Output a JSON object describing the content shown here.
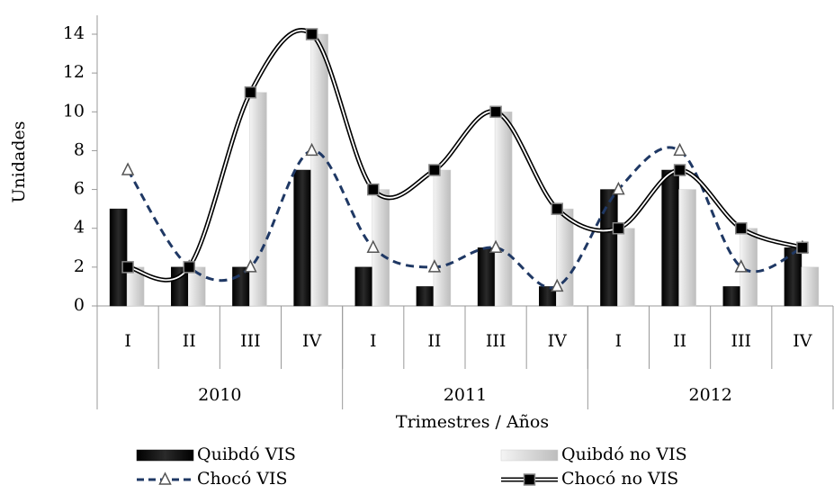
{
  "chart_data": {
    "type": "combo",
    "y_label": "Unidades",
    "x_label": "Trimestres / Años",
    "categories": [
      "I",
      "II",
      "III",
      "IV",
      "I",
      "II",
      "III",
      "IV",
      "I",
      "II",
      "III",
      "IV"
    ],
    "groups": [
      "2010",
      "2011",
      "2012"
    ],
    "ylim": [
      0,
      14
    ],
    "yticks": [
      0,
      2,
      4,
      6,
      8,
      10,
      12,
      14
    ],
    "series": [
      {
        "name": "Quibdó VIS",
        "type": "bar",
        "color": "#111111",
        "values": [
          5,
          2,
          2,
          7,
          2,
          1,
          3,
          1,
          6,
          7,
          1,
          3
        ]
      },
      {
        "name": "Quibdó no VIS",
        "type": "bar",
        "color": "#cfcfcf",
        "values": [
          2,
          2,
          11,
          14,
          6,
          7,
          10,
          5,
          4,
          6,
          4,
          2
        ]
      },
      {
        "name": "Chocó VIS",
        "type": "line",
        "style": "dashed",
        "marker": "triangle",
        "color": "#1f3864",
        "values": [
          7,
          2,
          2,
          8,
          3,
          2,
          3,
          1,
          6,
          8,
          2,
          3
        ]
      },
      {
        "name": "Chocó no VIS",
        "type": "line",
        "style": "double",
        "marker": "square",
        "color": "#000000",
        "values": [
          2,
          2,
          11,
          14,
          6,
          7,
          10,
          5,
          4,
          7,
          4,
          3
        ]
      }
    ]
  }
}
